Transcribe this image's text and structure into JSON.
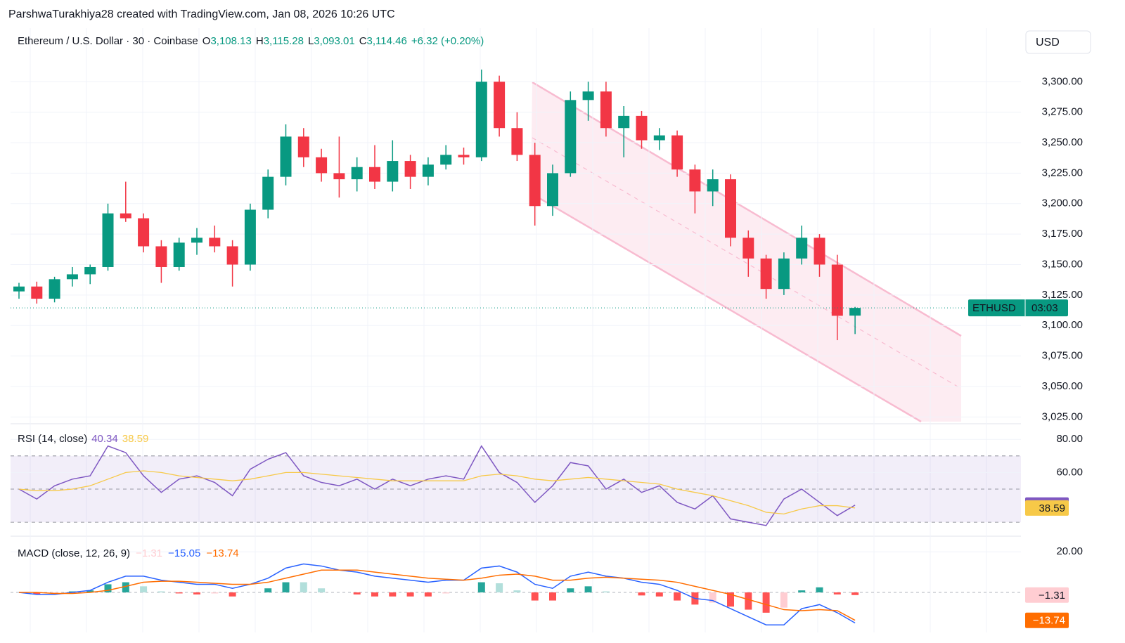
{
  "attribution": "ParshwaTurakhiya28 created with TradingView.com, Jan 08, 2026 10:26 UTC",
  "currency": "USD",
  "chart_data": [
    {
      "type": "candlestick",
      "title": "Ethereum / U.S. Dollar · 30 · Coinbase",
      "header": [
        {
          "key": "O",
          "value": "3,108.13"
        },
        {
          "key": "H",
          "value": "3,115.28"
        },
        {
          "key": "L",
          "value": "3,093.01"
        },
        {
          "key": "C",
          "value": "3,114.46"
        },
        {
          "value": "+6.32 (+0.20%)"
        }
      ],
      "open": [
        3128,
        3132,
        3122,
        3138,
        3142,
        3148,
        3192,
        3188,
        3165,
        3148,
        3168,
        3172,
        3165,
        3150,
        3195,
        3222,
        3255,
        3238,
        3225,
        3220,
        3230,
        3218,
        3235,
        3222,
        3232,
        3240,
        3238,
        3300,
        3262,
        3240,
        3198,
        3225,
        3285,
        3292,
        3262,
        3272,
        3252,
        3256,
        3228,
        3210,
        3220,
        3172,
        3155,
        3130,
        3155,
        3172,
        3150,
        3108.13
      ],
      "high": [
        3135,
        3136,
        3140,
        3148,
        3150,
        3200,
        3218,
        3192,
        3170,
        3172,
        3180,
        3182,
        3170,
        3200,
        3228,
        3265,
        3262,
        3245,
        3255,
        3238,
        3248,
        3252,
        3240,
        3238,
        3248,
        3246,
        3310,
        3305,
        3275,
        3250,
        3232,
        3292,
        3300,
        3300,
        3280,
        3276,
        3262,
        3260,
        3232,
        3228,
        3224,
        3178,
        3158,
        3160,
        3182,
        3175,
        3158,
        3115.28
      ],
      "low": [
        3122,
        3118,
        3119,
        3132,
        3134,
        3145,
        3185,
        3160,
        3135,
        3145,
        3158,
        3160,
        3132,
        3145,
        3188,
        3215,
        3230,
        3218,
        3205,
        3210,
        3212,
        3210,
        3212,
        3215,
        3228,
        3232,
        3235,
        3255,
        3235,
        3182,
        3190,
        3222,
        3268,
        3255,
        3238,
        3245,
        3244,
        3222,
        3192,
        3198,
        3165,
        3140,
        3122,
        3125,
        3150,
        3140,
        3088,
        3093.01
      ],
      "close": [
        3132,
        3122,
        3138,
        3142,
        3148,
        3192,
        3188,
        3165,
        3148,
        3168,
        3172,
        3165,
        3150,
        3195,
        3222,
        3255,
        3238,
        3225,
        3220,
        3230,
        3218,
        3235,
        3222,
        3232,
        3240,
        3238,
        3300,
        3262,
        3240,
        3198,
        3225,
        3285,
        3292,
        3262,
        3272,
        3252,
        3256,
        3228,
        3210,
        3220,
        3172,
        3155,
        3130,
        3155,
        3172,
        3150,
        3108,
        3114.46
      ],
      "up_color": "#089981",
      "down_color": "#f23645",
      "ylim": [
        3020,
        3344
      ],
      "yticks": [
        {
          "value": 3025,
          "label": "3,025.00"
        },
        {
          "value": 3050,
          "label": "3,050.00"
        },
        {
          "value": 3075,
          "label": "3,075.00"
        },
        {
          "value": 3100,
          "label": "3,100.00"
        },
        {
          "value": 3125,
          "label": "3,125.00"
        },
        {
          "value": 3150,
          "label": "3,150.00"
        },
        {
          "value": 3175,
          "label": "3,175.00"
        },
        {
          "value": 3200,
          "label": "3,200.00"
        },
        {
          "value": 3225,
          "label": "3,225.00"
        },
        {
          "value": 3250,
          "label": "3,250.00"
        },
        {
          "value": 3275,
          "label": "3,275.00"
        },
        {
          "value": 3300,
          "label": "3,300.00"
        }
      ],
      "last_price": {
        "value": 3114.46,
        "symbol": "ETHUSD",
        "countdown": "03:03"
      }
    },
    {
      "type": "line",
      "title": "RSI (14, close)",
      "ylim": [
        22,
        89
      ],
      "yticks": [
        {
          "value": 60,
          "label": "60.00"
        },
        {
          "value": 80,
          "label": "80.00"
        }
      ],
      "bands": [
        70,
        50,
        30
      ],
      "series": [
        {
          "color": "#7e57c2",
          "last_label": "40.34",
          "values": [
            50,
            44,
            52,
            56,
            58,
            76,
            72,
            58,
            48,
            56,
            58,
            54,
            46,
            62,
            68,
            72,
            58,
            54,
            52,
            56,
            50,
            56,
            52,
            56,
            58,
            56,
            76,
            60,
            54,
            42,
            52,
            66,
            64,
            50,
            56,
            48,
            52,
            42,
            38,
            46,
            32,
            30,
            28,
            44,
            50,
            42,
            34,
            40.34
          ]
        },
        {
          "color": "#f7c948",
          "last_label": "38.59",
          "values": [
            50,
            49,
            49,
            50,
            52,
            56,
            60,
            61,
            60,
            58,
            57,
            56,
            55,
            56,
            58,
            60,
            60,
            59,
            58,
            57,
            56,
            55,
            55,
            55,
            55,
            55,
            58,
            59,
            58,
            56,
            55,
            56,
            57,
            56,
            55,
            54,
            53,
            50,
            48,
            46,
            43,
            40,
            36,
            35,
            38,
            40,
            40,
            38.59
          ]
        }
      ]
    },
    {
      "type": "macd",
      "title": "MACD (close, 12, 26, 9)",
      "ylim": [
        -18,
        27
      ],
      "yticks": [
        {
          "value": 20,
          "label": "20.00"
        }
      ],
      "histogram": {
        "last_label": "−1.31",
        "values": [
          0,
          -1,
          -0.5,
          0.5,
          1,
          4,
          5,
          3,
          0.5,
          -0.5,
          -1,
          -0.5,
          -2,
          0,
          2,
          5,
          5,
          2,
          0,
          -1,
          -2,
          -2,
          -2,
          -2,
          -0.5,
          0,
          5,
          4.5,
          1,
          -4,
          -4,
          2,
          3,
          0.5,
          0,
          -1.5,
          -2,
          -4,
          -6,
          -5,
          -7,
          -8.5,
          -10,
          -7.5,
          1,
          2.5,
          -1,
          -1.31
        ]
      },
      "series": [
        {
          "color": "#2962ff",
          "last_label": "−15.05",
          "values": [
            0,
            -1,
            -1,
            0,
            1,
            5,
            8,
            8,
            6,
            5,
            4,
            4,
            2,
            4,
            7,
            12,
            14,
            13,
            11,
            10,
            8,
            7,
            6,
            5,
            6,
            6,
            12,
            13,
            10,
            4,
            2,
            8,
            10,
            8,
            7,
            5,
            4,
            1,
            -3,
            -4,
            -8,
            -12,
            -16,
            -16,
            -8,
            -6,
            -10,
            -15.05
          ]
        },
        {
          "color": "#ff6d00",
          "last_label": "−13.74",
          "values": [
            0,
            0,
            -0.5,
            -0.5,
            0,
            1,
            3,
            5,
            5.5,
            5.5,
            5,
            4.5,
            4,
            4,
            5,
            7,
            9,
            11,
            11,
            11,
            10,
            9,
            8,
            7,
            6.5,
            6,
            7,
            8.5,
            9,
            8,
            6,
            6,
            7,
            7.5,
            7,
            6.5,
            6,
            5,
            3,
            1,
            -1,
            -3.5,
            -6,
            -8.5,
            -9,
            -8.5,
            -9,
            -13.74
          ]
        }
      ]
    }
  ]
}
